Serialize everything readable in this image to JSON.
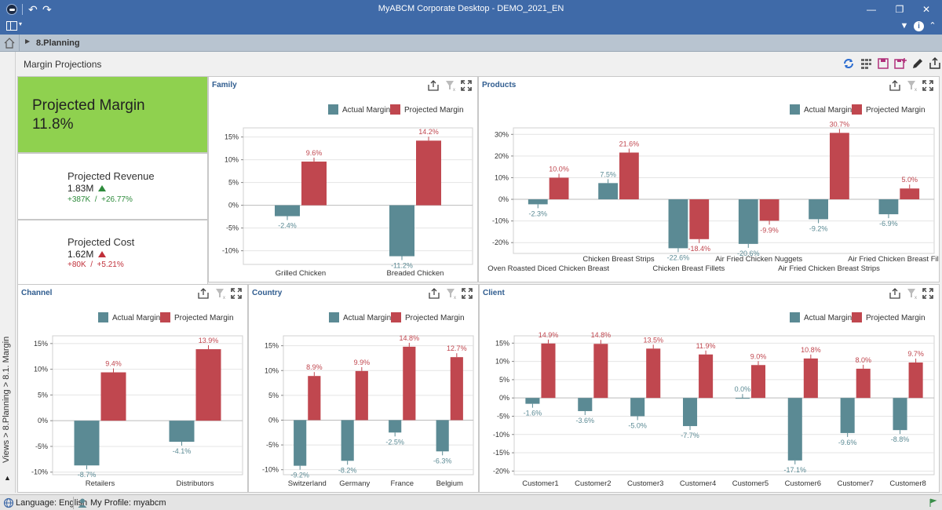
{
  "window": {
    "title": "MyABCM Corporate Desktop - DEMO_2021_EN"
  },
  "breadcrumb": {
    "current": "8.Planning"
  },
  "side_path": "Views > 8.Planning > 8.1. Margin",
  "page": {
    "title": "Margin Projections"
  },
  "kpis": {
    "projected_margin": {
      "label": "Projected Margin",
      "value": "11.8%"
    },
    "projected_revenue": {
      "label": "Projected Revenue",
      "value": "1.83M",
      "delta_abs": "+387K",
      "sep": "/",
      "delta_pct": "+26.77%"
    },
    "projected_cost": {
      "label": "Projected Cost",
      "value": "1.62M",
      "delta_abs": "+80K",
      "sep": "/",
      "delta_pct": "+5.21%"
    }
  },
  "colors": {
    "actual": "#5b8a94",
    "projected": "#c0474f",
    "kpi_green": "#8fd14f",
    "title_bar": "#3f6aa8"
  },
  "legend": {
    "actual": "Actual Margin",
    "projected": "Projected Margin"
  },
  "icons": [
    "app-logo-icon",
    "undo-icon",
    "redo-icon",
    "layout-icon",
    "minimize-icon",
    "restore-icon",
    "close-icon",
    "chevron-down-icon",
    "info-icon",
    "collapse-icon",
    "home-icon",
    "refresh-icon",
    "grid-icon",
    "save-icon",
    "save-as-icon",
    "edit-icon",
    "export-icon",
    "filter-clear-icon",
    "fullscreen-icon",
    "globe-icon",
    "user-icon"
  ],
  "status": {
    "language": "Language: English",
    "profile": "My Profile: myabcm"
  },
  "chart_data": [
    {
      "id": "family",
      "title": "Family",
      "type": "bar",
      "categories": [
        "Grilled Chicken",
        "Breaded Chicken"
      ],
      "series": [
        {
          "name": "Actual Margin",
          "values": [
            -2.4,
            -11.2
          ]
        },
        {
          "name": "Projected Margin",
          "values": [
            9.6,
            14.2
          ]
        }
      ],
      "ylim": [
        -13,
        17
      ],
      "ticks": [
        -10,
        -5,
        0,
        5,
        10,
        15
      ],
      "legend": "top-right"
    },
    {
      "id": "products",
      "title": "Products",
      "type": "bar",
      "categories": [
        "Oven Roasted Diced Chicken Breast",
        "Chicken Breast Strips",
        "Chicken Breast Fillets",
        "Air Fried Chicken Nuggets",
        "Air Fried Chicken Breast Strips",
        "Air Fried Chicken Breast Fillets"
      ],
      "series": [
        {
          "name": "Actual Margin",
          "values": [
            -2.3,
            7.5,
            -22.6,
            -20.6,
            -9.2,
            -6.9
          ]
        },
        {
          "name": "Projected Margin",
          "values": [
            10.0,
            21.6,
            -18.4,
            -9.9,
            30.7,
            5.0
          ]
        }
      ],
      "ylim": [
        -25,
        33
      ],
      "ticks": [
        -20,
        -10,
        0,
        10,
        20,
        30
      ],
      "legend": "top-right"
    },
    {
      "id": "channel",
      "title": "Channel",
      "type": "bar",
      "categories": [
        "Retailers",
        "Distributors"
      ],
      "series": [
        {
          "name": "Actual Margin",
          "values": [
            -8.7,
            -4.1
          ]
        },
        {
          "name": "Projected Margin",
          "values": [
            9.4,
            13.9
          ]
        }
      ],
      "ylim": [
        -10.5,
        16.5
      ],
      "ticks": [
        -10,
        -5,
        0,
        5,
        10,
        15
      ],
      "legend": "top-right"
    },
    {
      "id": "country",
      "title": "Country",
      "type": "bar",
      "categories": [
        "Switzerland",
        "Germany",
        "France",
        "Belgium"
      ],
      "series": [
        {
          "name": "Actual Margin",
          "values": [
            -9.2,
            -8.2,
            -2.5,
            -6.3
          ]
        },
        {
          "name": "Projected Margin",
          "values": [
            8.9,
            9.9,
            14.8,
            12.7
          ]
        }
      ],
      "ylim": [
        -11,
        17
      ],
      "ticks": [
        -10,
        -5,
        0,
        5,
        10,
        15
      ],
      "legend": "top-right"
    },
    {
      "id": "client",
      "title": "Client",
      "type": "bar",
      "categories": [
        "Customer1",
        "Customer2",
        "Customer3",
        "Customer4",
        "Customer5",
        "Customer6",
        "Customer7",
        "Customer8"
      ],
      "series": [
        {
          "name": "Actual Margin",
          "values": [
            -1.6,
            -3.6,
            -5.0,
            -7.7,
            0.0,
            -17.1,
            -9.6,
            -8.8
          ]
        },
        {
          "name": "Projected Margin",
          "values": [
            14.9,
            14.8,
            13.5,
            11.9,
            9.0,
            10.8,
            8.0,
            9.7
          ]
        }
      ],
      "ylim": [
        -21,
        17
      ],
      "ticks": [
        -20,
        -15,
        -10,
        -5,
        0,
        5,
        10,
        15
      ],
      "legend": "top-right"
    }
  ]
}
